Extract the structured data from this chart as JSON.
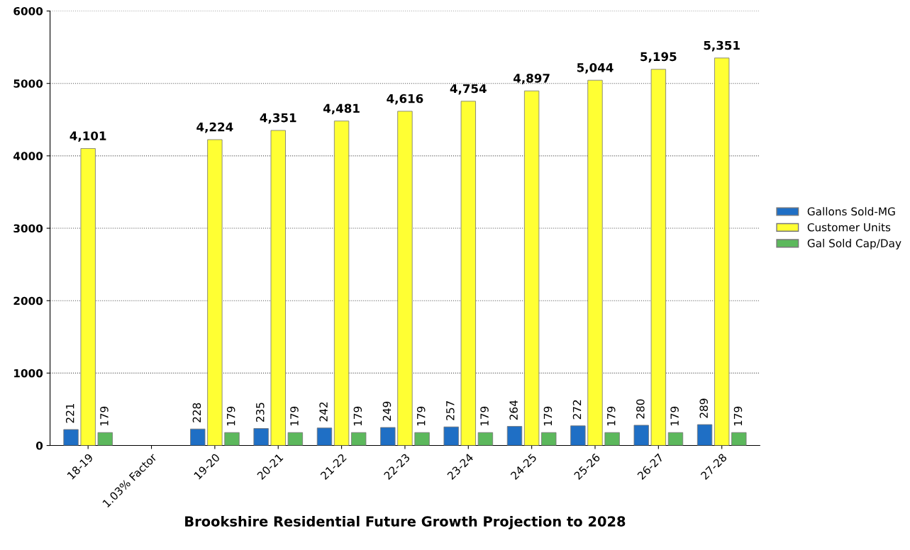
{
  "chart_data": {
    "type": "bar",
    "xlabel": "Brookshire Residential Future Growth Projection to 2028",
    "categories": [
      "18-19",
      "1.03% Factor",
      "19-20",
      "20-21",
      "21-22",
      "22-23",
      "23-24",
      "24-25",
      "25-26",
      "26-27",
      "27-28"
    ],
    "series": [
      {
        "name": "Gallons Sold-MG",
        "color": "#1f6fc5",
        "values": [
          221,
          null,
          228,
          235,
          242,
          249,
          257,
          264,
          272,
          280,
          289
        ]
      },
      {
        "name": "Customer Units",
        "color": "#ffff33",
        "values": [
          4101,
          null,
          4224,
          4351,
          4481,
          4616,
          4754,
          4897,
          5044,
          5195,
          5351
        ],
        "value_labels": [
          "4,101",
          null,
          "4,224",
          "4,351",
          "4,481",
          "4,616",
          "4,754",
          "4,897",
          "5,044",
          "5,195",
          "5,351"
        ]
      },
      {
        "name": "Gal Sold Cap/Day",
        "color": "#5cb85c",
        "values": [
          179,
          null,
          179,
          179,
          179,
          179,
          179,
          179,
          179,
          179,
          179
        ]
      }
    ],
    "data_labels": true,
    "ylim": [
      0,
      6000
    ],
    "yticks": [
      0,
      1000,
      2000,
      3000,
      4000,
      5000,
      6000
    ],
    "grid": "y",
    "legend": "right"
  }
}
